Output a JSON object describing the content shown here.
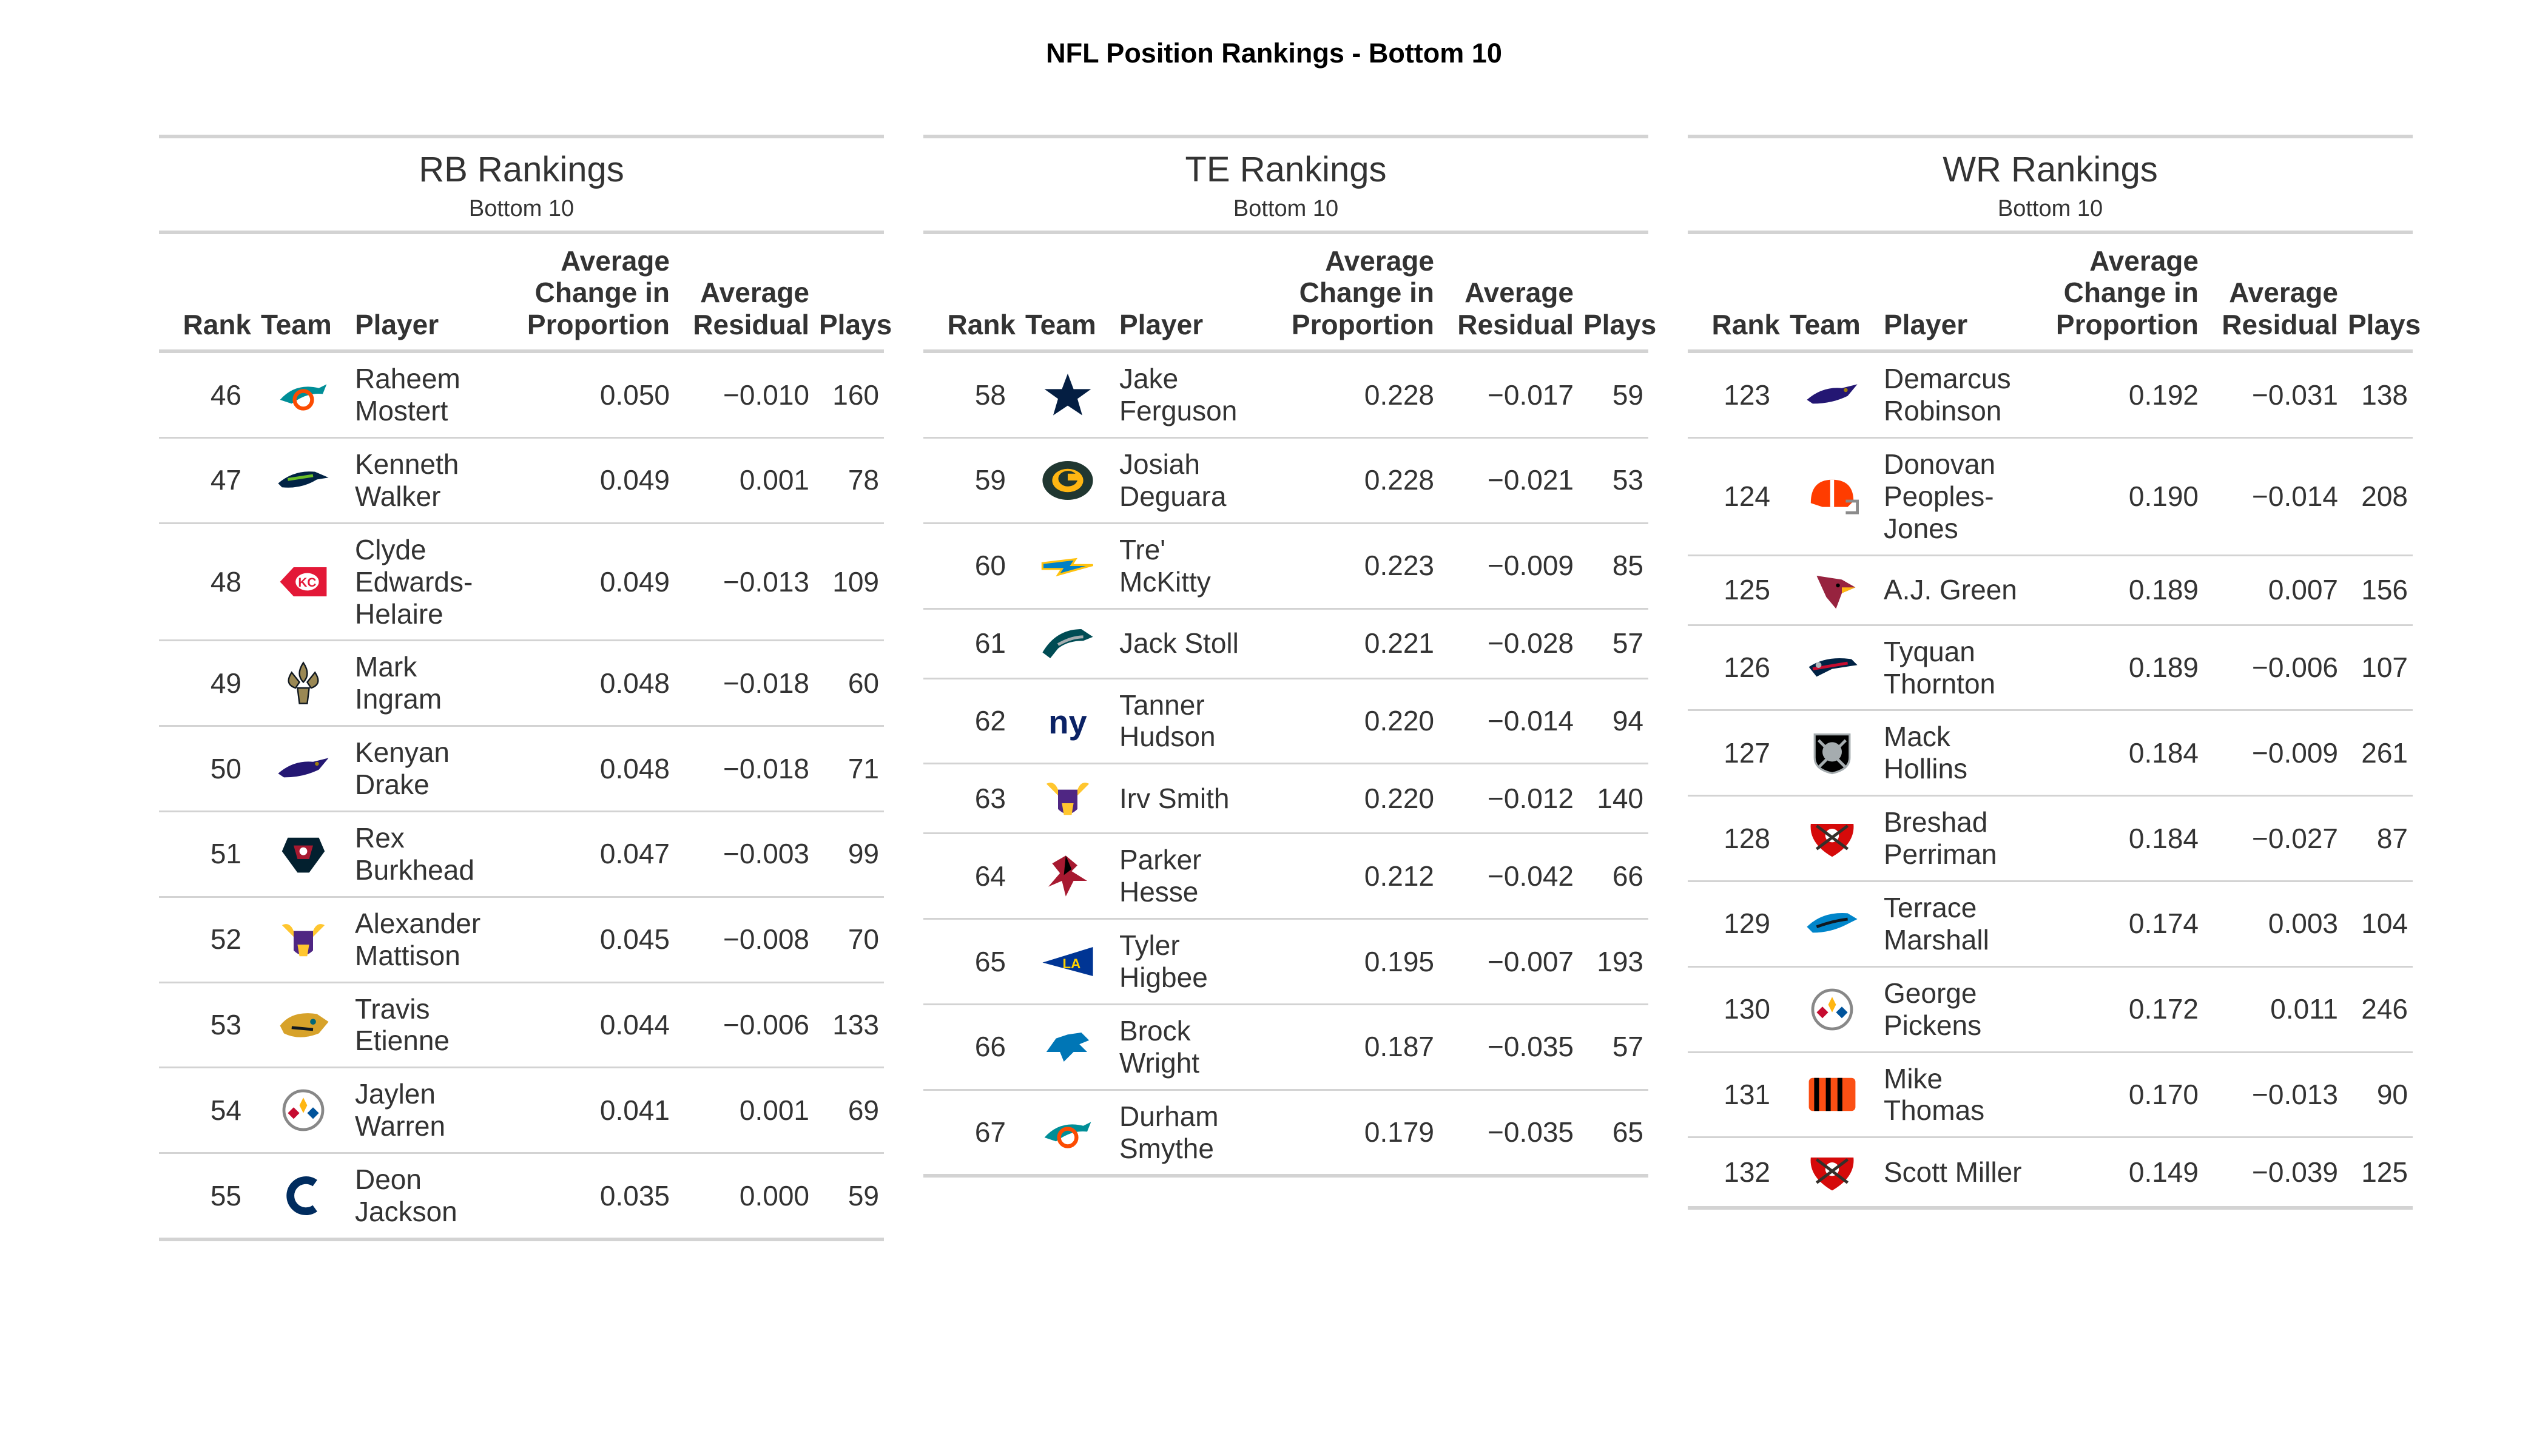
{
  "title": "NFL Position Rankings - Bottom 10",
  "chart_data": {
    "type": "table",
    "title": "NFL Position Rankings - Bottom 10",
    "columns": [
      "Rank",
      "Team",
      "Player",
      "Average Change in Proportion",
      "Average Residual",
      "Plays"
    ],
    "tables": [
      {
        "title": "RB Rankings",
        "subtitle": "Bottom 10",
        "headers": {
          "rank": "Rank",
          "team": "Team",
          "player": "Player",
          "avg_change": "Average Change in Proportion",
          "avg_residual": "Average Residual",
          "plays": "Plays"
        },
        "rows": [
          {
            "rank": "46",
            "team": "dolphins",
            "player": "Raheem Mostert",
            "avg_change": "0.050",
            "avg_residual": "−0.010",
            "plays": "160"
          },
          {
            "rank": "47",
            "team": "seahawks",
            "player": "Kenneth Walker",
            "avg_change": "0.049",
            "avg_residual": "0.001",
            "plays": "78"
          },
          {
            "rank": "48",
            "team": "chiefs",
            "player": "Clyde Edwards-Helaire",
            "avg_change": "0.049",
            "avg_residual": "−0.013",
            "plays": "109"
          },
          {
            "rank": "49",
            "team": "saints",
            "player": "Mark Ingram",
            "avg_change": "0.048",
            "avg_residual": "−0.018",
            "plays": "60"
          },
          {
            "rank": "50",
            "team": "ravens",
            "player": "Kenyan Drake",
            "avg_change": "0.048",
            "avg_residual": "−0.018",
            "plays": "71"
          },
          {
            "rank": "51",
            "team": "texans",
            "player": "Rex Burkhead",
            "avg_change": "0.047",
            "avg_residual": "−0.003",
            "plays": "99"
          },
          {
            "rank": "52",
            "team": "vikings",
            "player": "Alexander Mattison",
            "avg_change": "0.045",
            "avg_residual": "−0.008",
            "plays": "70"
          },
          {
            "rank": "53",
            "team": "jaguars",
            "player": "Travis Etienne",
            "avg_change": "0.044",
            "avg_residual": "−0.006",
            "plays": "133"
          },
          {
            "rank": "54",
            "team": "steelers",
            "player": "Jaylen Warren",
            "avg_change": "0.041",
            "avg_residual": "0.001",
            "plays": "69"
          },
          {
            "rank": "55",
            "team": "colts",
            "player": "Deon Jackson",
            "avg_change": "0.035",
            "avg_residual": "0.000",
            "plays": "59"
          }
        ]
      },
      {
        "title": "TE Rankings",
        "subtitle": "Bottom 10",
        "headers": {
          "rank": "Rank",
          "team": "Team",
          "player": "Player",
          "avg_change": "Average Change in Proportion",
          "avg_residual": "Average Residual",
          "plays": "Plays"
        },
        "rows": [
          {
            "rank": "58",
            "team": "cowboys",
            "player": "Jake Ferguson",
            "avg_change": "0.228",
            "avg_residual": "−0.017",
            "plays": "59"
          },
          {
            "rank": "59",
            "team": "packers",
            "player": "Josiah Deguara",
            "avg_change": "0.228",
            "avg_residual": "−0.021",
            "plays": "53"
          },
          {
            "rank": "60",
            "team": "chargers",
            "player": "Tre' McKitty",
            "avg_change": "0.223",
            "avg_residual": "−0.009",
            "plays": "85"
          },
          {
            "rank": "61",
            "team": "eagles",
            "player": "Jack Stoll",
            "avg_change": "0.221",
            "avg_residual": "−0.028",
            "plays": "57"
          },
          {
            "rank": "62",
            "team": "giants",
            "player": "Tanner Hudson",
            "avg_change": "0.220",
            "avg_residual": "−0.014",
            "plays": "94"
          },
          {
            "rank": "63",
            "team": "vikings",
            "player": "Irv Smith",
            "avg_change": "0.220",
            "avg_residual": "−0.012",
            "plays": "140"
          },
          {
            "rank": "64",
            "team": "falcons",
            "player": "Parker Hesse",
            "avg_change": "0.212",
            "avg_residual": "−0.042",
            "plays": "66"
          },
          {
            "rank": "65",
            "team": "rams",
            "player": "Tyler Higbee",
            "avg_change": "0.195",
            "avg_residual": "−0.007",
            "plays": "193"
          },
          {
            "rank": "66",
            "team": "lions",
            "player": "Brock Wright",
            "avg_change": "0.187",
            "avg_residual": "−0.035",
            "plays": "57"
          },
          {
            "rank": "67",
            "team": "dolphins",
            "player": "Durham Smythe",
            "avg_change": "0.179",
            "avg_residual": "−0.035",
            "plays": "65"
          }
        ]
      },
      {
        "title": "WR Rankings",
        "subtitle": "Bottom 10",
        "headers": {
          "rank": "Rank",
          "team": "Team",
          "player": "Player",
          "avg_change": "Average Change in Proportion",
          "avg_residual": "Average Residual",
          "plays": "Plays"
        },
        "rows": [
          {
            "rank": "123",
            "team": "ravens",
            "player": "Demarcus Robinson",
            "avg_change": "0.192",
            "avg_residual": "−0.031",
            "plays": "138"
          },
          {
            "rank": "124",
            "team": "browns",
            "player": "Donovan Peoples-Jones",
            "avg_change": "0.190",
            "avg_residual": "−0.014",
            "plays": "208"
          },
          {
            "rank": "125",
            "team": "cardinals",
            "player": "A.J. Green",
            "avg_change": "0.189",
            "avg_residual": "0.007",
            "plays": "156"
          },
          {
            "rank": "126",
            "team": "patriots",
            "player": "Tyquan Thornton",
            "avg_change": "0.189",
            "avg_residual": "−0.006",
            "plays": "107"
          },
          {
            "rank": "127",
            "team": "raiders",
            "player": "Mack Hollins",
            "avg_change": "0.184",
            "avg_residual": "−0.009",
            "plays": "261"
          },
          {
            "rank": "128",
            "team": "buccaneers",
            "player": "Breshad Perriman",
            "avg_change": "0.184",
            "avg_residual": "−0.027",
            "plays": "87"
          },
          {
            "rank": "129",
            "team": "panthers",
            "player": "Terrace Marshall",
            "avg_change": "0.174",
            "avg_residual": "0.003",
            "plays": "104"
          },
          {
            "rank": "130",
            "team": "steelers",
            "player": "George Pickens",
            "avg_change": "0.172",
            "avg_residual": "0.011",
            "plays": "246"
          },
          {
            "rank": "131",
            "team": "bengals",
            "player": "Mike Thomas",
            "avg_change": "0.170",
            "avg_residual": "−0.013",
            "plays": "90"
          },
          {
            "rank": "132",
            "team": "buccaneers",
            "player": "Scott Miller",
            "avg_change": "0.149",
            "avg_residual": "−0.039",
            "plays": "125"
          }
        ]
      }
    ]
  }
}
